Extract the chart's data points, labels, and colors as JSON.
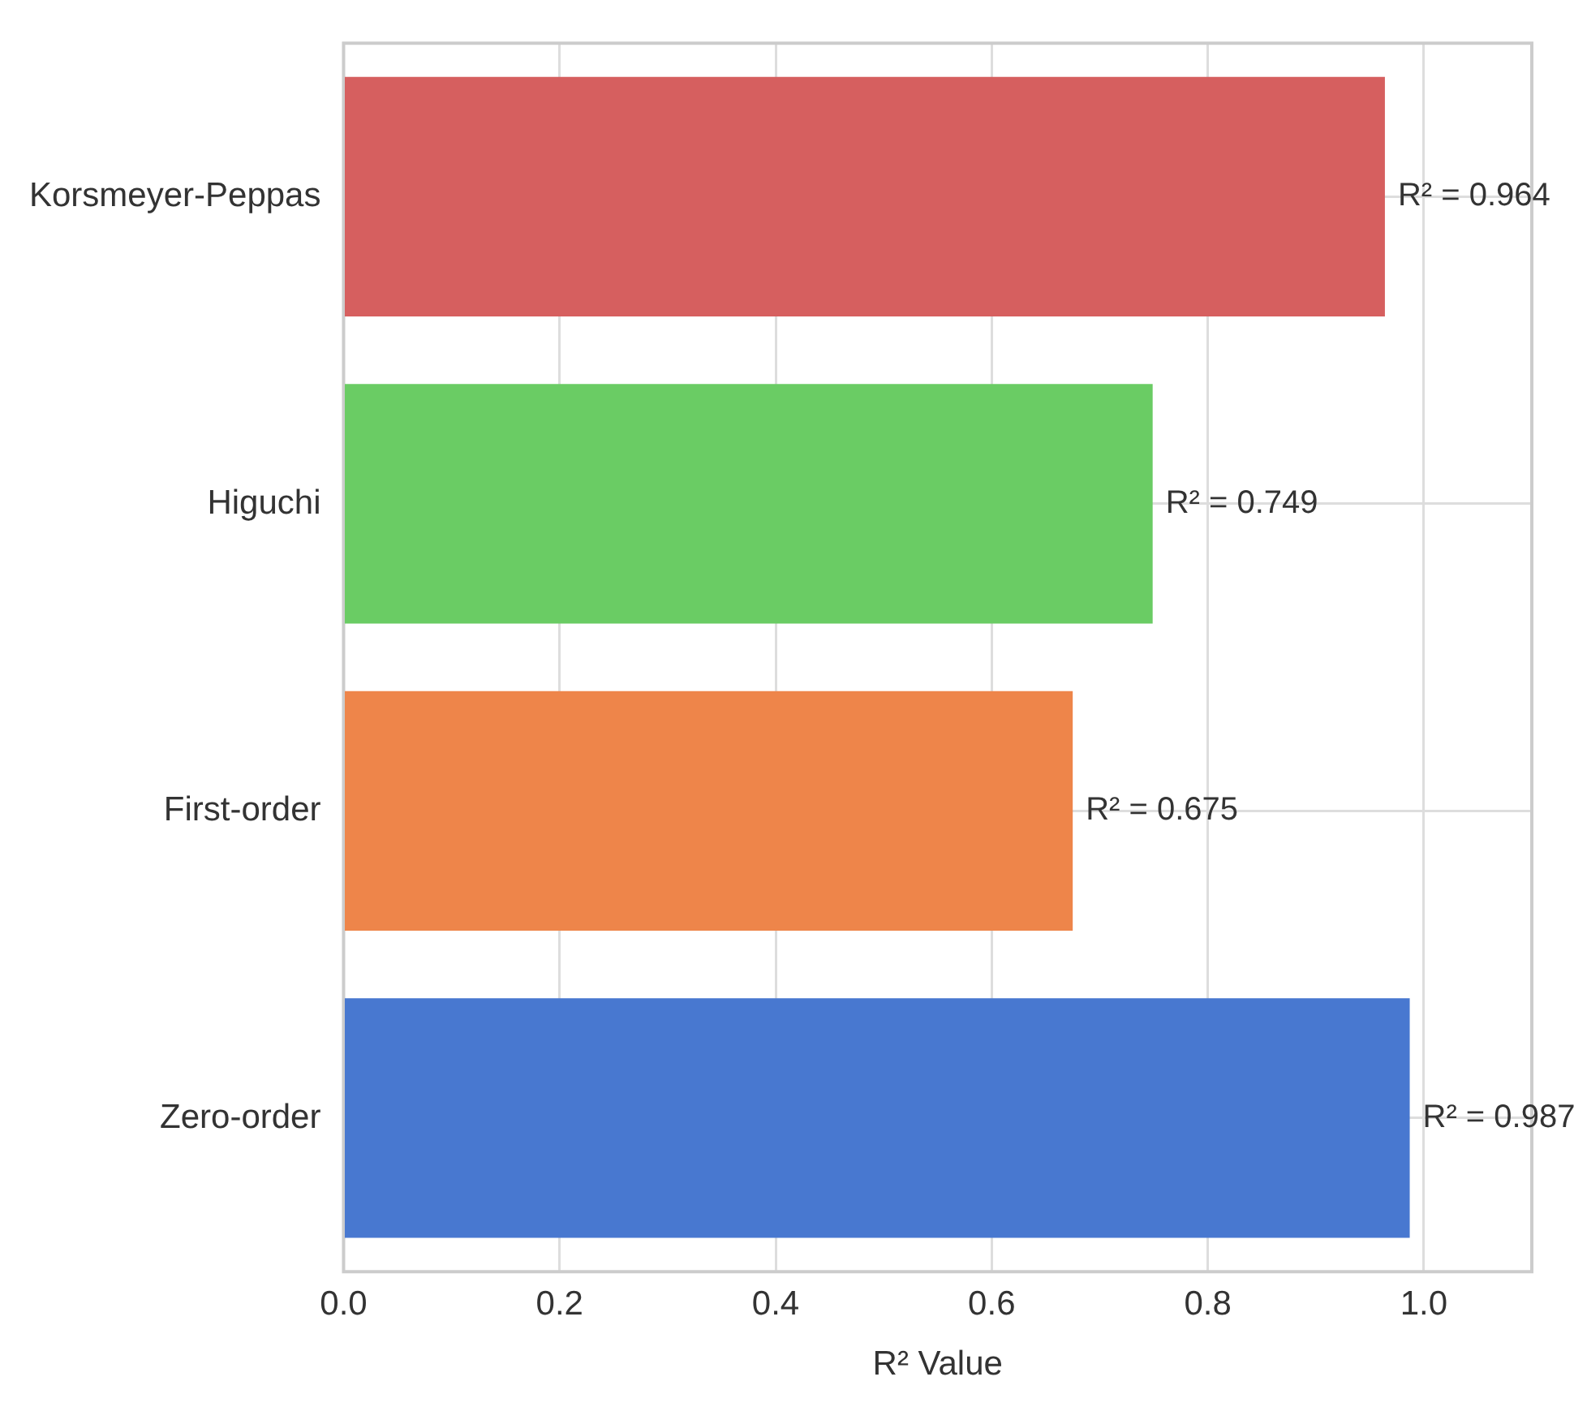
{
  "chart_data": {
    "type": "bar",
    "orientation": "horizontal",
    "xlabel": "R² Value",
    "categories": [
      "Korsmeyer-Peppas",
      "Higuchi",
      "First-order",
      "Zero-order"
    ],
    "values": [
      0.964,
      0.749,
      0.675,
      0.987
    ],
    "colors": [
      "#d65f5f",
      "#6acc64",
      "#ee854a",
      "#4878d0"
    ],
    "value_labels": [
      "R² = 0.964",
      "R² = 0.749",
      "R² = 0.675",
      "R² = 0.987"
    ],
    "xlim": [
      0,
      1.1
    ],
    "xticks": [
      {
        "value": 0,
        "label": "0.0"
      },
      {
        "value": 0.2,
        "label": "0.2"
      },
      {
        "value": 0.4,
        "label": "0.4"
      },
      {
        "value": 0.6,
        "label": "0.6"
      },
      {
        "value": 0.8,
        "label": "0.8"
      },
      {
        "value": 1,
        "label": "1.0"
      }
    ],
    "grid": true,
    "legend": false
  }
}
